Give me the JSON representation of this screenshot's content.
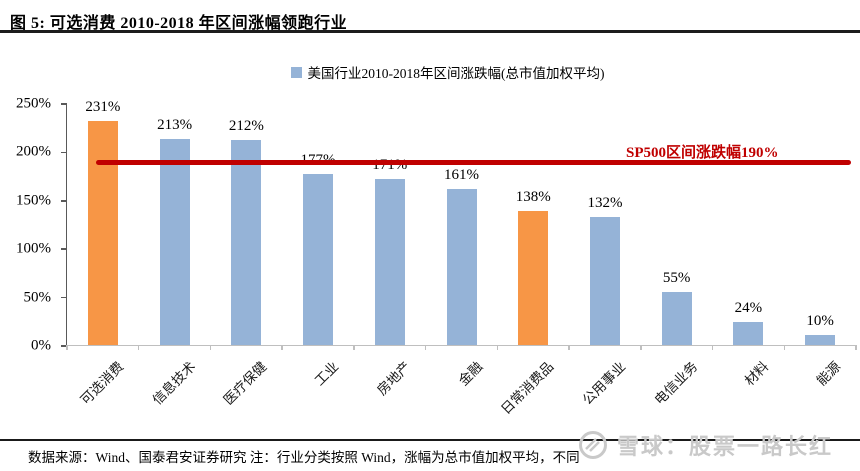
{
  "header": {
    "title": "图 5:  可选消费 2010-2018 年区间涨幅领跑行业"
  },
  "legend": {
    "label": "美国行业2010-2018年区间涨跌幅(总市值加权平均)",
    "swatch_color": "#95B3D7"
  },
  "chart_data": {
    "type": "bar",
    "title": "美国行业2010-2018年区间涨跌幅(总市值加权平均)",
    "categories": [
      "可选消费",
      "信息技术",
      "医疗保健",
      "工业",
      "房地产",
      "金融",
      "日常消费品",
      "公用事业",
      "电信业务",
      "材料",
      "能源"
    ],
    "values": [
      231,
      213,
      212,
      177,
      171,
      161,
      138,
      132,
      55,
      24,
      10
    ],
    "value_labels": [
      "231%",
      "213%",
      "212%",
      "177%",
      "171%",
      "161%",
      "138%",
      "132%",
      "55%",
      "24%",
      "10%"
    ],
    "highlight_indices": [
      0,
      6
    ],
    "xlabel": "",
    "ylabel": "",
    "ylim": [
      0,
      250
    ],
    "yticks": [
      "0%",
      "50%",
      "100%",
      "150%",
      "200%",
      "250%"
    ],
    "grid": false,
    "legend_position": "top-center",
    "reference_line": {
      "value": 190,
      "label": "SP500区间涨跌幅190%"
    },
    "colors": {
      "bar_default": "#95B3D7",
      "bar_highlight": "#F79646",
      "reference_line": "#C00000",
      "axis": "#595959",
      "baseline": "#BFBFBF"
    }
  },
  "footer": {
    "source_note": "数据来源：Wind、国泰君安证券研究  注：行业分类按照 Wind，涨幅为总市值加权平均，不同"
  },
  "watermark": {
    "text": "雪球：股票一路长红",
    "color": "#C9C9C9"
  }
}
